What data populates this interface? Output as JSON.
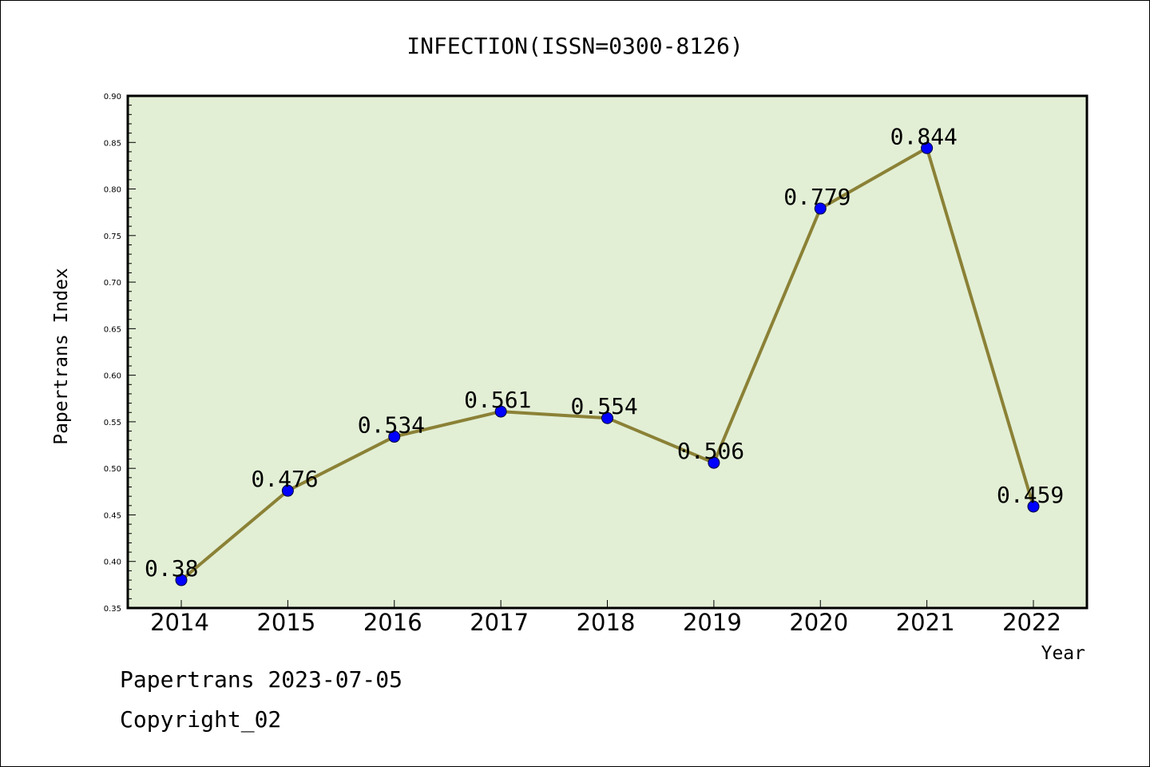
{
  "chart_data": {
    "type": "line",
    "title": "INFECTION(ISSN=0300-8126)",
    "xlabel": "Year",
    "ylabel": "Papertrans Index",
    "categories": [
      "2014",
      "2015",
      "2016",
      "2017",
      "2018",
      "2019",
      "2020",
      "2021",
      "2022"
    ],
    "series": [
      {
        "values": [
          0.38,
          0.476,
          0.534,
          0.561,
          0.554,
          0.506,
          0.779,
          0.844,
          0.459
        ],
        "data_labels": [
          "0.38",
          "0.476",
          "0.534",
          "0.561",
          "0.554",
          "0.506",
          "0.779",
          "0.844",
          "0.459"
        ]
      }
    ],
    "ylim": [
      0.35,
      0.9
    ],
    "yticks": [
      "0.35",
      "0.40",
      "0.45",
      "0.50",
      "0.55",
      "0.60",
      "0.65",
      "0.70",
      "0.75",
      "0.80",
      "0.85",
      "0.90"
    ],
    "grid": false,
    "colors": {
      "plot_background": "#e2efd5",
      "line": "#8b8136",
      "marker": "#0000ff"
    }
  },
  "footer": {
    "line1": "Papertrans 2023-07-05",
    "line2": "Copyright_02"
  }
}
